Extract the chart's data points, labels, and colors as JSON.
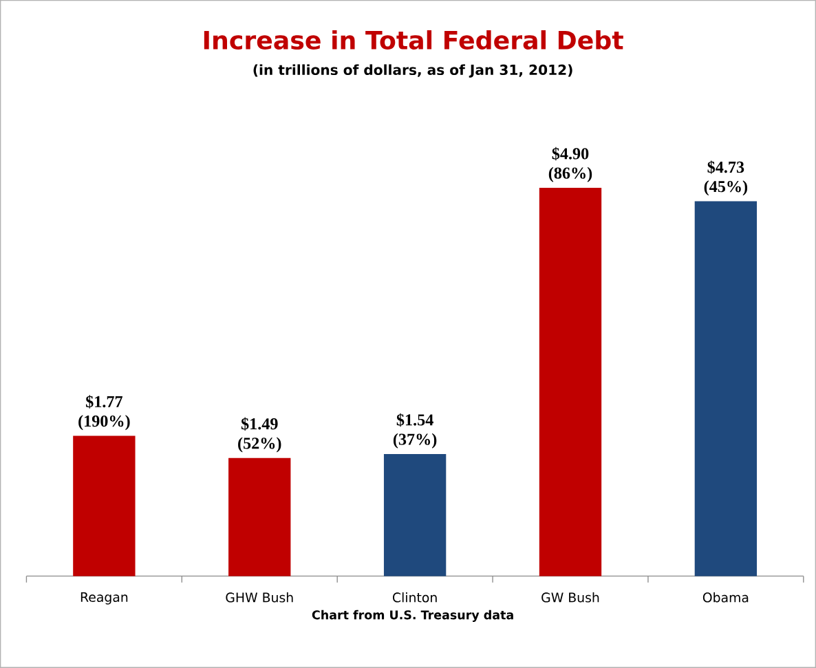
{
  "chart_data": {
    "type": "bar",
    "title": "Increase in Total Federal Debt",
    "subtitle": "(in trillions of dollars, as of Jan 31, 2012)",
    "categories": [
      "Reagan",
      "GHW Bush",
      "Clinton",
      "GW Bush",
      "Obama"
    ],
    "values": [
      1.77,
      1.49,
      1.54,
      4.9,
      4.73
    ],
    "colors": [
      "#c00000",
      "#c00000",
      "#1f497d",
      "#c00000",
      "#1f497d"
    ],
    "value_labels": [
      "$1.77 (190%)",
      "$1.49 (52%)",
      "$1.54 (37%)",
      "$4.90 (86%)",
      "$4.73 (45%)"
    ],
    "annotations": [
      "Chart from U.S. Treasury data"
    ],
    "grid": false
  }
}
